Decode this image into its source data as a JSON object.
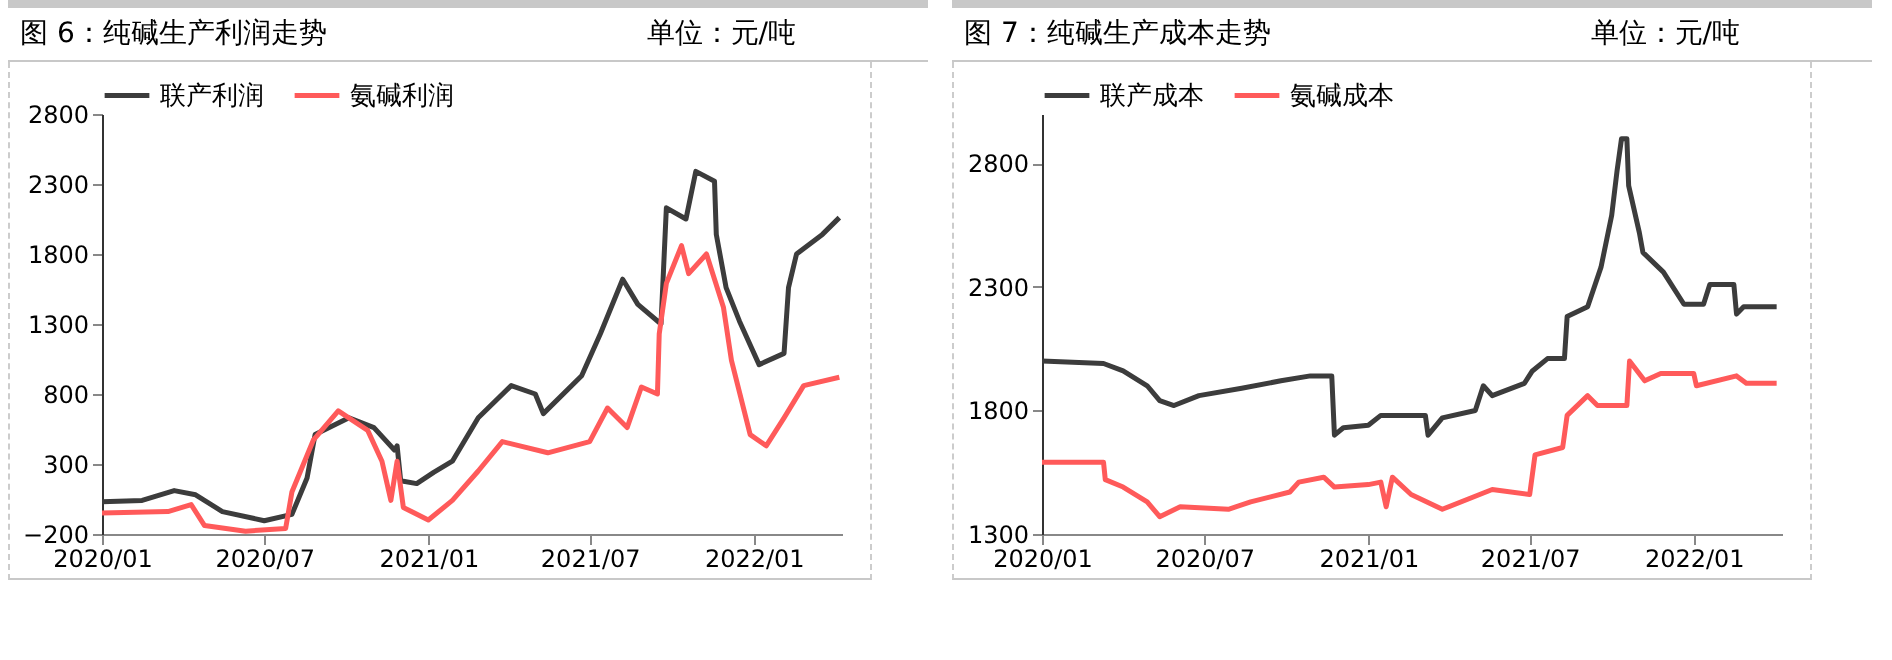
{
  "chart_data": [
    {
      "type": "line",
      "title": "图 6：纯碱生产利润走势",
      "subtitle": "单位：元/吨",
      "legend": "top",
      "grid": false,
      "marker": "none",
      "line_style": "solid",
      "xlim": [
        "2020-01-01",
        "2022-04-10"
      ],
      "xticks": [
        {
          "value": "2020-01",
          "label": "2020/01"
        },
        {
          "value": "2020-07",
          "label": "2020/07"
        },
        {
          "value": "2021-01",
          "label": "2021/01"
        },
        {
          "value": "2021-07",
          "label": "2021/07"
        },
        {
          "value": "2022-01",
          "label": "2022/01"
        }
      ],
      "ylim": [
        -200,
        2800
      ],
      "yticks": [
        -200,
        300,
        800,
        1300,
        1800,
        2300,
        2800
      ],
      "series": [
        {
          "name": "联产利润",
          "color": "#3c3c3c",
          "x": [
            "2020-01-01",
            "2020-02-15",
            "2020-03-22",
            "2020-04-15",
            "2020-05-15",
            "2020-07-01",
            "2020-08-01",
            "2020-08-18",
            "2020-08-27",
            "2020-10-04",
            "2020-11-01",
            "2020-11-24",
            "2020-11-27",
            "2020-12-01",
            "2020-12-19",
            "2021-01-07",
            "2021-01-28",
            "2021-02-26",
            "2021-04-04",
            "2021-05-01",
            "2021-05-10",
            "2021-06-22",
            "2021-07-13",
            "2021-08-07",
            "2021-08-24",
            "2021-09-19",
            "2021-09-25",
            "2021-10-17",
            "2021-10-28",
            "2021-11-18",
            "2021-11-20",
            "2021-12-01",
            "2021-12-16",
            "2022-01-07",
            "2022-02-04",
            "2022-02-09",
            "2022-02-18",
            "2022-03-19",
            "2022-04-07"
          ],
          "values": [
            30,
            40,
            110,
            80,
            -40,
            -105,
            -60,
            200,
            510,
            630,
            560,
            400,
            430,
            180,
            160,
            240,
            320,
            630,
            860,
            800,
            660,
            930,
            1230,
            1620,
            1440,
            1300,
            2130,
            2050,
            2390,
            2320,
            1940,
            1560,
            1320,
            1010,
            1090,
            1560,
            1800,
            1940,
            2060
          ]
        },
        {
          "name": "氨碱利润",
          "color": "#ff5a5a",
          "x": [
            "2020-01-01",
            "2020-03-15",
            "2020-04-10",
            "2020-04-25",
            "2020-06-10",
            "2020-07-25",
            "2020-08-01",
            "2020-08-25",
            "2020-09-22",
            "2020-10-25",
            "2020-11-10",
            "2020-11-20",
            "2020-11-27",
            "2020-12-04",
            "2021-01-01",
            "2021-01-28",
            "2021-02-26",
            "2021-03-25",
            "2021-05-15",
            "2021-07-01",
            "2021-07-21",
            "2021-08-12",
            "2021-08-28",
            "2021-09-15",
            "2021-09-17",
            "2021-09-25",
            "2021-10-12",
            "2021-10-20",
            "2021-11-09",
            "2021-11-28",
            "2021-12-07",
            "2021-12-28",
            "2022-01-15",
            "2022-02-04",
            "2022-02-26",
            "2022-04-07"
          ],
          "values": [
            -50,
            -40,
            10,
            -140,
            -180,
            -160,
            100,
            470,
            680,
            540,
            320,
            40,
            320,
            -10,
            -100,
            40,
            250,
            460,
            380,
            460,
            700,
            560,
            850,
            800,
            1230,
            1590,
            1860,
            1660,
            1800,
            1420,
            1040,
            510,
            430,
            630,
            860,
            920
          ]
        }
      ]
    },
    {
      "type": "line",
      "title": "图 7：纯碱生产成本走势",
      "subtitle": "单位：元/吨",
      "legend": "top",
      "grid": false,
      "marker": "none",
      "line_style": "solid",
      "xlim": [
        "2020-01-01",
        "2022-04-10"
      ],
      "xticks": [
        {
          "value": "2020-01",
          "label": "2020/01"
        },
        {
          "value": "2020-07",
          "label": "2020/07"
        },
        {
          "value": "2021-01",
          "label": "2021/01"
        },
        {
          "value": "2021-07",
          "label": "2021/07"
        },
        {
          "value": "2022-01",
          "label": "2022/01"
        }
      ],
      "ylim": [
        1300,
        3000
      ],
      "yticks": [
        1300,
        1800,
        2300,
        2800
      ],
      "series": [
        {
          "name": "联产成本",
          "color": "#3c3c3c",
          "x": [
            "2020-01-01",
            "2020-03-10",
            "2020-04-01",
            "2020-04-28",
            "2020-05-12",
            "2020-05-28",
            "2020-06-25",
            "2020-08-12",
            "2020-09-25",
            "2020-10-28",
            "2020-11-21",
            "2020-11-24",
            "2020-12-04",
            "2021-01-01",
            "2021-01-15",
            "2021-03-06",
            "2021-03-09",
            "2021-03-25",
            "2021-05-01",
            "2021-05-10",
            "2021-05-20",
            "2021-06-25",
            "2021-07-04",
            "2021-07-21",
            "2021-08-09",
            "2021-08-12",
            "2021-09-04",
            "2021-09-19",
            "2021-10-01",
            "2021-10-07",
            "2021-10-12",
            "2021-10-18",
            "2021-10-20",
            "2021-11-01",
            "2021-11-05",
            "2021-11-28",
            "2021-12-21",
            "2022-01-12",
            "2022-01-19",
            "2022-02-15",
            "2022-02-18",
            "2022-02-26",
            "2022-04-04"
          ],
          "values": [
            2000,
            1990,
            1960,
            1900,
            1840,
            1820,
            1860,
            1890,
            1920,
            1940,
            1940,
            1700,
            1730,
            1740,
            1780,
            1780,
            1700,
            1770,
            1800,
            1900,
            1860,
            1910,
            1960,
            2010,
            2010,
            2180,
            2220,
            2380,
            2590,
            2770,
            2900,
            2900,
            2710,
            2520,
            2440,
            2360,
            2230,
            2230,
            2310,
            2310,
            2190,
            2220,
            2220
          ]
        },
        {
          "name": "氨碱成本",
          "color": "#ff5a5a",
          "x": [
            "2020-01-01",
            "2020-03-10",
            "2020-03-12",
            "2020-04-01",
            "2020-04-28",
            "2020-05-12",
            "2020-06-04",
            "2020-07-28",
            "2020-08-22",
            "2020-10-05",
            "2020-10-15",
            "2020-11-12",
            "2020-11-24",
            "2021-01-01",
            "2021-01-15",
            "2021-01-21",
            "2021-01-28",
            "2021-02-18",
            "2021-03-25",
            "2021-05-20",
            "2021-07-01",
            "2021-07-07",
            "2021-08-07",
            "2021-08-12",
            "2021-09-04",
            "2021-09-15",
            "2021-10-18",
            "2021-10-21",
            "2021-11-07",
            "2021-11-25",
            "2022-01-01",
            "2022-01-04",
            "2022-02-18",
            "2022-03-01",
            "2022-04-04"
          ],
          "values": [
            1590,
            1590,
            1520,
            1490,
            1430,
            1370,
            1410,
            1400,
            1430,
            1470,
            1510,
            1530,
            1490,
            1500,
            1510,
            1410,
            1530,
            1460,
            1400,
            1480,
            1460,
            1620,
            1650,
            1780,
            1860,
            1820,
            1820,
            2000,
            1920,
            1950,
            1950,
            1900,
            1940,
            1910,
            1910
          ]
        }
      ]
    }
  ]
}
